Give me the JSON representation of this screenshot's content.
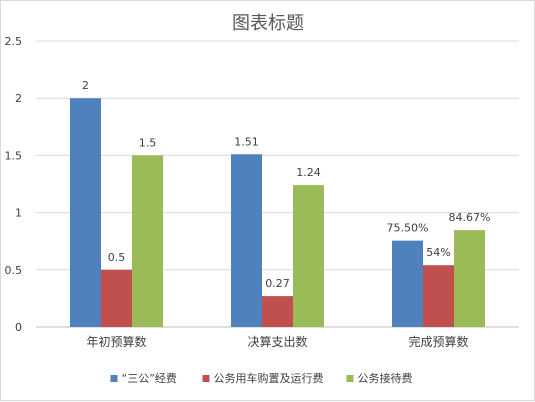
{
  "chart_data": {
    "type": "bar",
    "title": "图表标题",
    "categories": [
      "年初预算数",
      "决算支出数",
      "完成预算数"
    ],
    "series": [
      {
        "name": "“三公”经费",
        "color": "#4f81bd",
        "values": [
          2,
          1.51,
          0.755
        ],
        "labels": [
          "2",
          "1.51",
          "75.50%"
        ]
      },
      {
        "name": "公务用车购置及运行费",
        "color": "#c0504d",
        "values": [
          0.5,
          0.27,
          0.54
        ],
        "labels": [
          "0.5",
          "0.27",
          "54%"
        ]
      },
      {
        "name": "公务接待费",
        "color": "#9bbb59",
        "values": [
          1.5,
          1.24,
          0.8467
        ],
        "labels": [
          "1.5",
          "1.24",
          "84.67%"
        ]
      }
    ],
    "yticks": [
      "0",
      "0.5",
      "1",
      "1.5",
      "2",
      "2.5"
    ],
    "ylim": [
      0,
      2.5
    ],
    "grid": true,
    "legend_position": "bottom"
  }
}
